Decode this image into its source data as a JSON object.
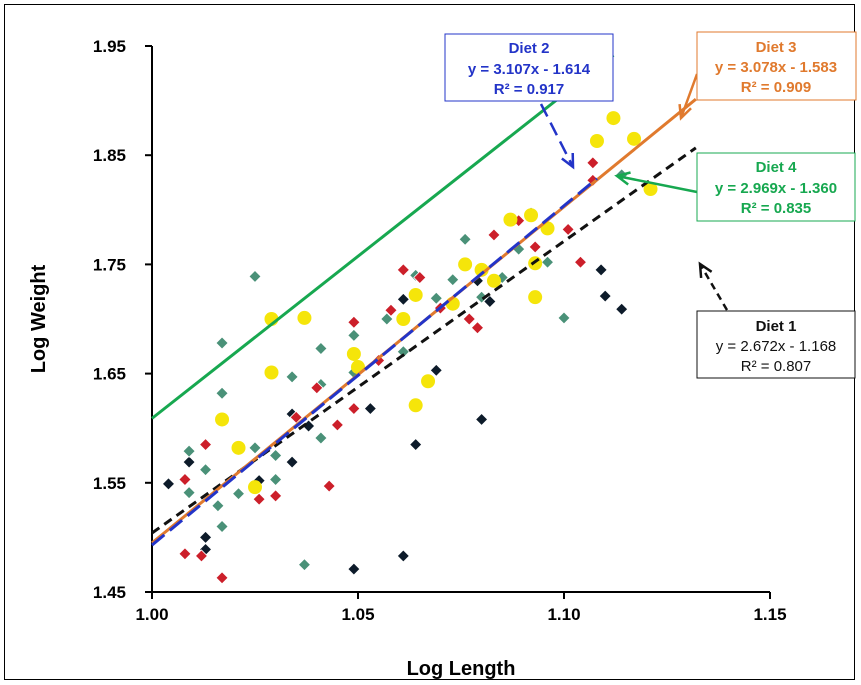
{
  "chart_data": {
    "type": "scatter",
    "title": "",
    "xlabel": "Log Length",
    "ylabel": "Log  Weight",
    "xlim": [
      1.0,
      1.15
    ],
    "ylim": [
      1.45,
      1.95
    ],
    "xticks": [
      "1.00",
      "1.05",
      "1.10",
      "1.15"
    ],
    "yticks": [
      "1.45",
      "1.55",
      "1.65",
      "1.75",
      "1.85",
      "1.95"
    ],
    "grid": false,
    "legend": "none",
    "series": [
      {
        "name": "Diet 1",
        "marker": "diamond",
        "color": "#0d1b2a",
        "points": [
          [
            1.004,
            1.549
          ],
          [
            1.009,
            1.569
          ],
          [
            1.013,
            1.5
          ],
          [
            1.013,
            1.489
          ],
          [
            1.026,
            1.552
          ],
          [
            1.034,
            1.569
          ],
          [
            1.034,
            1.613
          ],
          [
            1.038,
            1.602
          ],
          [
            1.049,
            1.471
          ],
          [
            1.053,
            1.618
          ],
          [
            1.061,
            1.483
          ],
          [
            1.061,
            1.718
          ],
          [
            1.064,
            1.585
          ],
          [
            1.069,
            1.653
          ],
          [
            1.079,
            1.735
          ],
          [
            1.08,
            1.608
          ],
          [
            1.082,
            1.716
          ],
          [
            1.109,
            1.745
          ],
          [
            1.11,
            1.721
          ],
          [
            1.114,
            1.709
          ]
        ],
        "fit": {
          "slope": 2.672,
          "intercept": -1.168,
          "x_range": [
            1.0,
            1.132
          ],
          "line": "dashed"
        },
        "annotation": {
          "title": "Diet 1",
          "equation": "y = 2.672x - 1.168",
          "r2": "R² = 0.807"
        }
      },
      {
        "name": "Diet 2",
        "marker": "diamond",
        "color": "#cc1f2a",
        "points": [
          [
            1.008,
            1.485
          ],
          [
            1.008,
            1.553
          ],
          [
            1.012,
            1.483
          ],
          [
            1.013,
            1.585
          ],
          [
            1.017,
            1.463
          ],
          [
            1.026,
            1.535
          ],
          [
            1.03,
            1.538
          ],
          [
            1.035,
            1.61
          ],
          [
            1.04,
            1.637
          ],
          [
            1.043,
            1.547
          ],
          [
            1.045,
            1.603
          ],
          [
            1.049,
            1.618
          ],
          [
            1.049,
            1.697
          ],
          [
            1.055,
            1.662
          ],
          [
            1.058,
            1.708
          ],
          [
            1.061,
            1.745
          ],
          [
            1.065,
            1.738
          ],
          [
            1.07,
            1.71
          ],
          [
            1.077,
            1.7
          ],
          [
            1.079,
            1.692
          ],
          [
            1.083,
            1.777
          ],
          [
            1.089,
            1.79
          ],
          [
            1.093,
            1.766
          ],
          [
            1.101,
            1.782
          ],
          [
            1.104,
            1.752
          ],
          [
            1.107,
            1.843
          ],
          [
            1.107,
            1.827
          ]
        ],
        "fit": {
          "slope": 3.107,
          "intercept": -1.614,
          "x_range": [
            1.0,
            1.108
          ],
          "line": "dashed"
        },
        "annotation": {
          "title": "Diet 2",
          "equation": "y = 3.107x - 1.614",
          "r2": "R² = 0.917"
        }
      },
      {
        "name": "Diet 3",
        "marker": "circle",
        "color": "#f5e50a",
        "points": [
          [
            1.017,
            1.608
          ],
          [
            1.021,
            1.582
          ],
          [
            1.025,
            1.546
          ],
          [
            1.029,
            1.7
          ],
          [
            1.029,
            1.651
          ],
          [
            1.037,
            1.701
          ],
          [
            1.049,
            1.668
          ],
          [
            1.05,
            1.656
          ],
          [
            1.061,
            1.7
          ],
          [
            1.064,
            1.722
          ],
          [
            1.064,
            1.621
          ],
          [
            1.067,
            1.643
          ],
          [
            1.073,
            1.714
          ],
          [
            1.076,
            1.75
          ],
          [
            1.08,
            1.745
          ],
          [
            1.083,
            1.735
          ],
          [
            1.087,
            1.791
          ],
          [
            1.092,
            1.795
          ],
          [
            1.093,
            1.72
          ],
          [
            1.093,
            1.751
          ],
          [
            1.096,
            1.783
          ],
          [
            1.108,
            1.863
          ],
          [
            1.112,
            1.884
          ],
          [
            1.117,
            1.865
          ],
          [
            1.121,
            1.819
          ]
        ],
        "fit": {
          "slope": 3.078,
          "intercept": -1.583,
          "x_range": [
            1.0,
            1.132
          ],
          "line": "solid"
        },
        "annotation": {
          "title": "Diet 3",
          "equation": "y = 3.078x - 1.583",
          "r2": "R² = 0.909"
        }
      },
      {
        "name": "Diet 4",
        "marker": "diamond",
        "color": "#4a9178",
        "points": [
          [
            1.009,
            1.579
          ],
          [
            1.009,
            1.541
          ],
          [
            1.013,
            1.562
          ],
          [
            1.016,
            1.529
          ],
          [
            1.017,
            1.678
          ],
          [
            1.017,
            1.632
          ],
          [
            1.017,
            1.51
          ],
          [
            1.021,
            1.54
          ],
          [
            1.025,
            1.739
          ],
          [
            1.025,
            1.582
          ],
          [
            1.03,
            1.575
          ],
          [
            1.03,
            1.553
          ],
          [
            1.034,
            1.647
          ],
          [
            1.037,
            1.475
          ],
          [
            1.041,
            1.673
          ],
          [
            1.041,
            1.64
          ],
          [
            1.041,
            1.591
          ],
          [
            1.049,
            1.685
          ],
          [
            1.049,
            1.651
          ],
          [
            1.057,
            1.7
          ],
          [
            1.061,
            1.67
          ],
          [
            1.064,
            1.74
          ],
          [
            1.069,
            1.719
          ],
          [
            1.073,
            1.736
          ],
          [
            1.076,
            1.773
          ],
          [
            1.08,
            1.72
          ],
          [
            1.085,
            1.738
          ],
          [
            1.089,
            1.764
          ],
          [
            1.092,
            1.797
          ],
          [
            1.096,
            1.752
          ],
          [
            1.1,
            1.701
          ],
          [
            1.114,
            1.832
          ]
        ],
        "fit": {
          "slope": 2.969,
          "intercept": -1.36,
          "x_range": [
            1.0,
            1.112
          ],
          "line": "solid"
        },
        "annotation": {
          "title": "Diet 4",
          "equation": "y = 2.969x - 1.360",
          "r2": "R² = 0.835"
        }
      }
    ]
  },
  "colors": {
    "diet1": "#111111",
    "diet2": "#2334c8",
    "diet3": "#e07a2e",
    "diet4": "#17a850"
  }
}
